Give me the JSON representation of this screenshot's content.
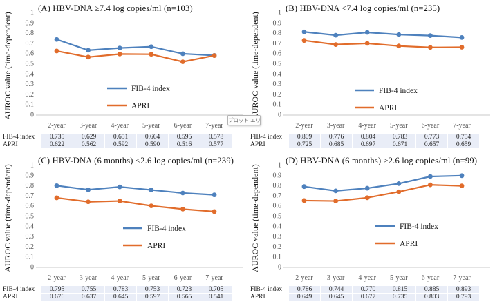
{
  "figure": {
    "y_axis_label": "AUROC value (time-dependent)",
    "y_ticks": [
      "1",
      "0.9",
      "0.8",
      "0.7",
      "0.6",
      "0.5",
      "0.4",
      "0.3",
      "0.2",
      "0.1",
      "0"
    ],
    "tooltip_text": "プロット エリア"
  },
  "colors": {
    "fib4_line": "#4E81BD",
    "apri_line": "#E16C2B",
    "tick_text": "#595959",
    "axis_line": "#C9C9C9",
    "table_cell_fill": "#E9EDF7"
  },
  "chart_data": [
    {
      "type": "line",
      "title": "(A) HBV-DNA ≥7.4 log copies/ml (n=103)",
      "ylabel": "AUROC value (time-dependent)",
      "categories": [
        "2-year",
        "3-year",
        "4-year",
        "5-year",
        "6-year",
        "7-year"
      ],
      "series": [
        {
          "name": "FIB-4 index",
          "values": [
            0.735,
            0.629,
            0.651,
            0.664,
            0.595,
            0.578
          ]
        },
        {
          "name": "APRI",
          "values": [
            0.622,
            0.562,
            0.592,
            0.59,
            0.516,
            0.577
          ]
        }
      ],
      "ylim": [
        0,
        1
      ],
      "ytick_step": 0.1,
      "grid": false,
      "legend_position": "inside-lower-center"
    },
    {
      "type": "line",
      "title": "(B) HBV-DNA <7.4 log copies/ml (n=235)",
      "ylabel": "AUROC value (time-dependent)",
      "categories": [
        "2-year",
        "3-year",
        "4-year",
        "5-year",
        "6-year",
        "7-year"
      ],
      "series": [
        {
          "name": "FIB-4 index",
          "values": [
            0.809,
            0.776,
            0.804,
            0.783,
            0.773,
            0.754
          ]
        },
        {
          "name": "APRI",
          "values": [
            0.725,
            0.685,
            0.697,
            0.671,
            0.657,
            0.659
          ]
        }
      ],
      "ylim": [
        0,
        1
      ],
      "ytick_step": 0.1,
      "grid": false,
      "legend_position": "inside-lower-center"
    },
    {
      "type": "line",
      "title": "(C) HBV-DNA (6 months) <2.6 log copies/ml (n=239)",
      "ylabel": "AUROC value (time-dependent)",
      "categories": [
        "2-year",
        "3-year",
        "4-year",
        "5-year",
        "6-year",
        "7-year"
      ],
      "series": [
        {
          "name": "FIB-4 index",
          "values": [
            0.795,
            0.755,
            0.783,
            0.753,
            0.723,
            0.705
          ]
        },
        {
          "name": "APRI",
          "values": [
            0.676,
            0.637,
            0.645,
            0.597,
            0.565,
            0.541
          ]
        }
      ],
      "ylim": [
        0,
        1
      ],
      "ytick_step": 0.1,
      "grid": false,
      "legend_position": "inside-lower-center"
    },
    {
      "type": "line",
      "title": "(D) HBV-DNA (6 months) ≥2.6 log copies/ml (n=99)",
      "ylabel": "AUROC value (time-dependent)",
      "categories": [
        "2-year",
        "3-year",
        "4-year",
        "5-year",
        "6-year",
        "7-year"
      ],
      "series": [
        {
          "name": "FIB-4 index",
          "values": [
            0.786,
            0.744,
            0.77,
            0.815,
            0.885,
            0.893
          ]
        },
        {
          "name": "APRI",
          "values": [
            0.649,
            0.645,
            0.677,
            0.735,
            0.803,
            0.793
          ]
        }
      ],
      "ylim": [
        0,
        1
      ],
      "ytick_step": 0.1,
      "grid": false,
      "legend_position": "inside-lower-center"
    }
  ]
}
